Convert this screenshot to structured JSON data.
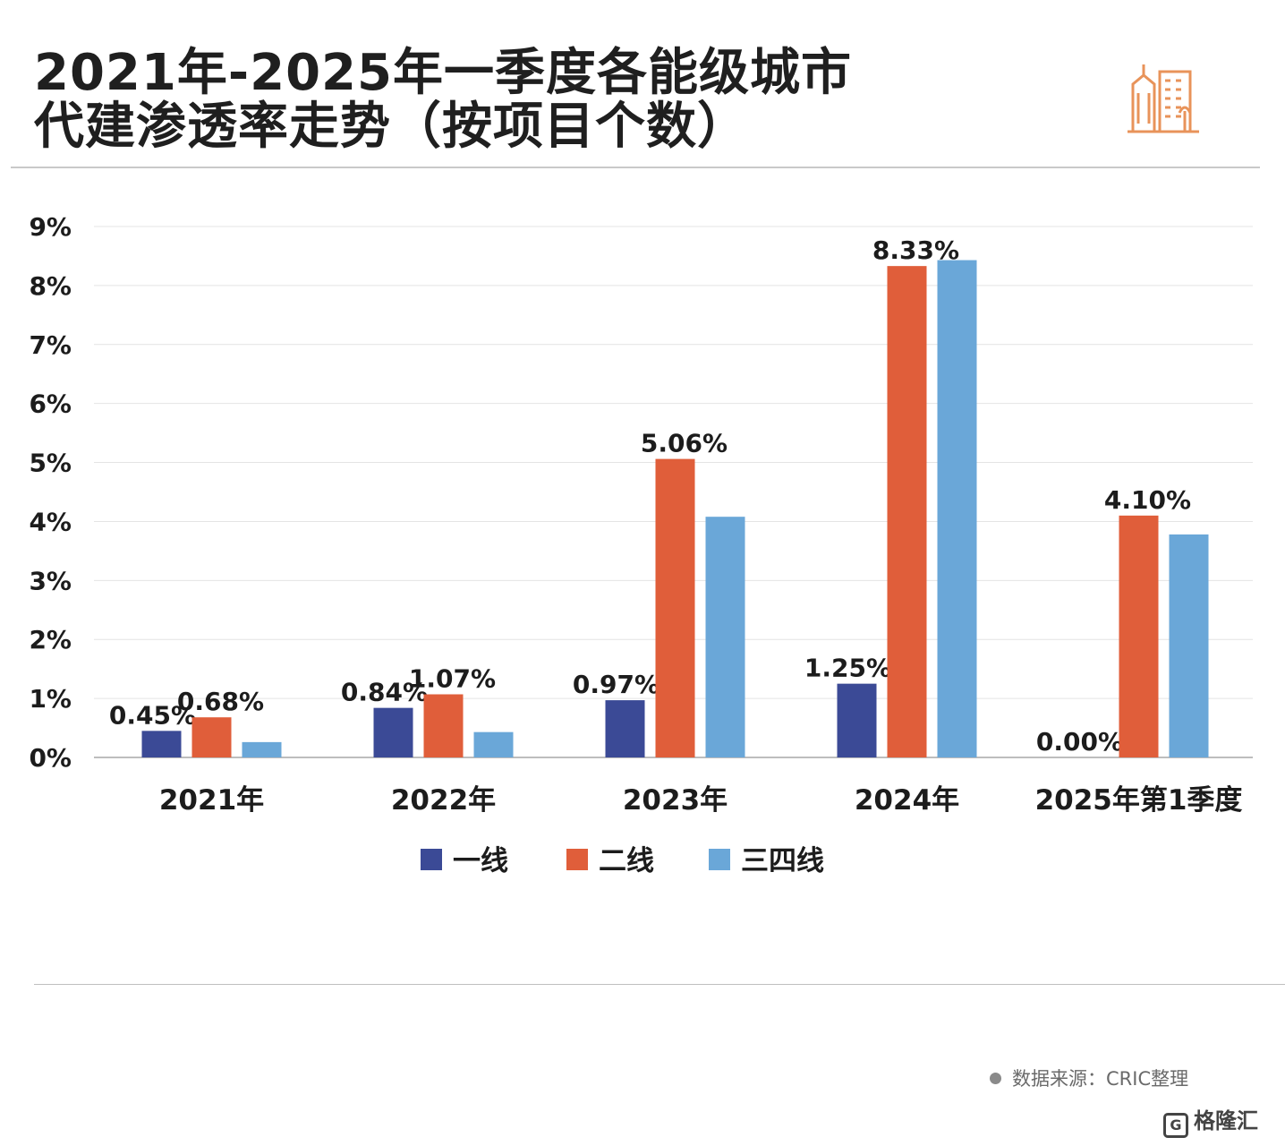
{
  "title": {
    "line1": "2021年-2025年一季度各能级城市",
    "line2": "代建渗透率走势（按项目个数）"
  },
  "logo": {
    "icon": "city-buildings-icon",
    "color": "#e8935a"
  },
  "chart_data": {
    "type": "bar",
    "title": "2021年-2025年一季度各能级城市代建渗透率走势（按项目个数）",
    "categories": [
      "2021年",
      "2022年",
      "2023年",
      "2024年",
      "2025年第1季度"
    ],
    "ylim": [
      0,
      9
    ],
    "yticks": [
      0,
      1,
      2,
      3,
      4,
      5,
      6,
      7,
      8,
      9
    ],
    "ytick_labels": [
      "0%",
      "1%",
      "2%",
      "3%",
      "4%",
      "5%",
      "6%",
      "7%",
      "8%",
      "9%"
    ],
    "grid": true,
    "legend_position": "bottom-center",
    "series": [
      {
        "name": "一线",
        "color": "#3b4a96",
        "values": [
          0.45,
          0.84,
          0.97,
          1.25,
          0.0
        ],
        "labels": [
          "0.45%",
          "0.84%",
          "0.97%",
          "1.25%",
          "0.00%"
        ]
      },
      {
        "name": "二线",
        "color": "#e05e3a",
        "values": [
          0.68,
          1.07,
          5.06,
          8.33,
          4.1
        ],
        "labels": [
          "0.68%",
          "1.07%",
          "5.06%",
          "8.33%",
          "4.10%"
        ]
      },
      {
        "name": "三四线",
        "color": "#6aa7d8",
        "values": [
          0.26,
          0.43,
          4.08,
          8.43,
          3.78
        ],
        "labels": [
          "",
          "",
          "",
          "",
          ""
        ]
      }
    ]
  },
  "footer": {
    "source": "数据来源：CRIC整理",
    "brand": "格隆汇",
    "brand_icon": "gelonghui-logo-icon"
  }
}
